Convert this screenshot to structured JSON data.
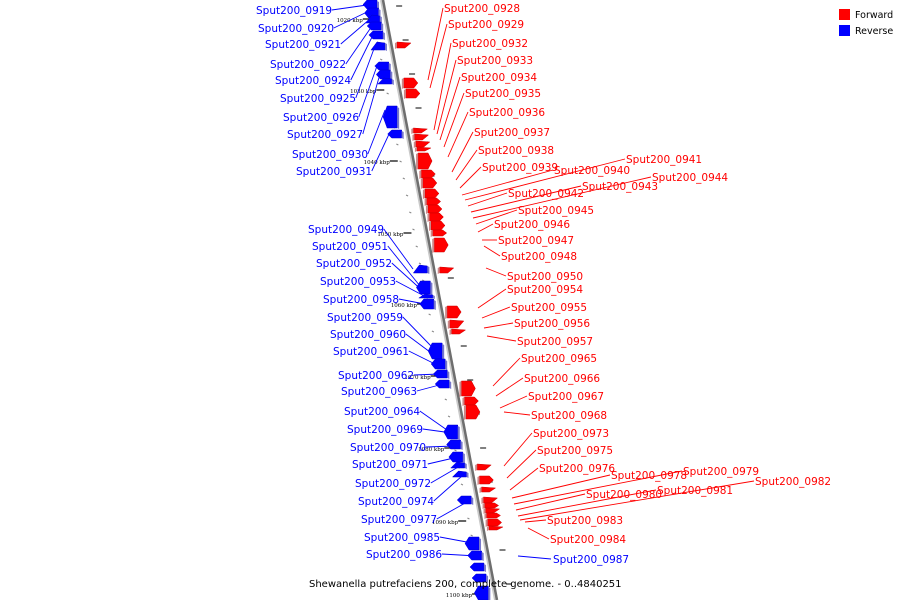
{
  "caption": "Shewanella putrefaciens 200, complete genome. - 0..4840251",
  "legend": {
    "forward_label": "Forward",
    "reverse_label": "Reverse",
    "forward_color": "#ff0000",
    "reverse_color": "#0000ff"
  },
  "ticks": [
    "1020 kbp",
    "1030 kbp",
    "1040 kbp",
    "1050 kbp",
    "1060 kbp",
    "1070 kbp",
    "1080 kbp",
    "1090 kbp",
    "1100 kbp"
  ],
  "reverse_genes": [
    "Sput200_0919",
    "Sput200_0920",
    "Sput200_0921",
    "Sput200_0922",
    "Sput200_0924",
    "Sput200_0925",
    "Sput200_0926",
    "Sput200_0927",
    "Sput200_0930",
    "Sput200_0931",
    "Sput200_0949",
    "Sput200_0951",
    "Sput200_0952",
    "Sput200_0953",
    "Sput200_0958",
    "Sput200_0959",
    "Sput200_0960",
    "Sput200_0961",
    "Sput200_0962",
    "Sput200_0963",
    "Sput200_0964",
    "Sput200_0969",
    "Sput200_0970",
    "Sput200_0971",
    "Sput200_0972",
    "Sput200_0974",
    "Sput200_0977",
    "Sput200_0985",
    "Sput200_0986",
    "Sput200_0987"
  ],
  "forward_genes": [
    "Sput200_0928",
    "Sput200_0929",
    "Sput200_0932",
    "Sput200_0933",
    "Sput200_0934",
    "Sput200_0935",
    "Sput200_0936",
    "Sput200_0937",
    "Sput200_0938",
    "Sput200_0939",
    "Sput200_0940",
    "Sput200_0941",
    "Sput200_0942",
    "Sput200_0943",
    "Sput200_0944",
    "Sput200_0945",
    "Sput200_0946",
    "Sput200_0947",
    "Sput200_0948",
    "Sput200_0950",
    "Sput200_0954",
    "Sput200_0955",
    "Sput200_0956",
    "Sput200_0957",
    "Sput200_0965",
    "Sput200_0966",
    "Sput200_0967",
    "Sput200_0968",
    "Sput200_0973",
    "Sput200_0975",
    "Sput200_0976",
    "Sput200_0978",
    "Sput200_0979",
    "Sput200_0980",
    "Sput200_0981",
    "Sput200_0982",
    "Sput200_0983",
    "Sput200_0984"
  ]
}
